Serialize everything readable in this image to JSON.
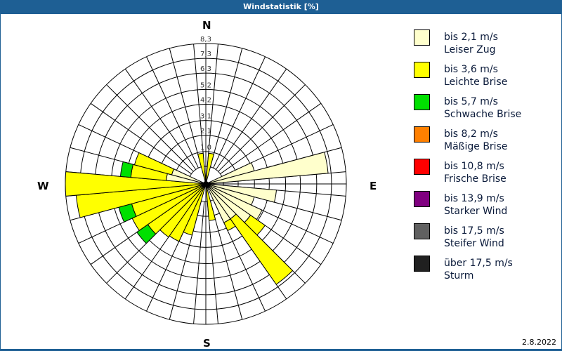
{
  "window": {
    "title": "Windstatistik [%]",
    "date": "2.8.2022"
  },
  "compass": {
    "n": "N",
    "e": "E",
    "s": "S",
    "w": "W"
  },
  "legend": [
    {
      "range": "bis 2,1 m/s",
      "name": "Leiser Zug",
      "color": "#ffffcc"
    },
    {
      "range": "bis 3,6 m/s",
      "name": "Leichte Brise",
      "color": "#ffff00"
    },
    {
      "range": "bis 5,7 m/s",
      "name": "Schwache Brise",
      "color": "#00e000"
    },
    {
      "range": "bis 8,2 m/s",
      "name": "Mäßige Brise",
      "color": "#ff8000"
    },
    {
      "range": "bis 10,8 m/s",
      "name": "Frische Brise",
      "color": "#ff0000"
    },
    {
      "range": "bis 13,9 m/s",
      "name": "Starker Wind",
      "color": "#800080"
    },
    {
      "range": "bis 17,5 m/s",
      "name": "Steifer Wind",
      "color": "#606060"
    },
    {
      "range": "über 17,5 m/s",
      "name": "Sturm",
      "color": "#202020"
    }
  ],
  "chart_data": {
    "type": "wind-rose",
    "title": "Windstatistik [%]",
    "unit": "%",
    "ring_labels": [
      "1,0",
      "2,1",
      "3,1",
      "4,2",
      "5,2",
      "6,3",
      "7,3",
      "8,3"
    ],
    "ring_values": [
      1.0,
      2.1,
      3.1,
      4.2,
      5.2,
      6.3,
      7.3,
      8.3
    ],
    "rmax": 8.3,
    "sector_width_deg": 10,
    "categories": [
      "bis 2,1 m/s",
      "bis 3,6 m/s",
      "bis 5,7 m/s",
      "bis 8,2 m/s",
      "bis 10,8 m/s",
      "bis 13,9 m/s",
      "bis 17,5 m/s",
      "über 17,5 m/s"
    ],
    "sectors": [
      {
        "dir": 0,
        "values": [
          0,
          0,
          0
        ]
      },
      {
        "dir": 10,
        "values": [
          0,
          0.9,
          0
        ]
      },
      {
        "dir": 20,
        "values": [
          0,
          0,
          0
        ]
      },
      {
        "dir": 30,
        "values": [
          0,
          0,
          0
        ]
      },
      {
        "dir": 40,
        "values": [
          0,
          0,
          0
        ]
      },
      {
        "dir": 50,
        "values": [
          0,
          0,
          0
        ]
      },
      {
        "dir": 60,
        "values": [
          0,
          0,
          0
        ]
      },
      {
        "dir": 70,
        "values": [
          2.2,
          0,
          0
        ]
      },
      {
        "dir": 80,
        "values": [
          7.1,
          0,
          0
        ]
      },
      {
        "dir": 90,
        "values": [
          0,
          0,
          0
        ]
      },
      {
        "dir": 100,
        "values": [
          3.6,
          0,
          0
        ]
      },
      {
        "dir": 110,
        "values": [
          2.2,
          0,
          0
        ]
      },
      {
        "dir": 120,
        "values": [
          3.0,
          0,
          0
        ]
      },
      {
        "dir": 130,
        "values": [
          2.5,
          1.2,
          0
        ]
      },
      {
        "dir": 140,
        "values": [
          1.7,
          5.4,
          0
        ]
      },
      {
        "dir": 150,
        "values": [
          1.7,
          0.6,
          0
        ]
      },
      {
        "dir": 160,
        "values": [
          0,
          0,
          0
        ]
      },
      {
        "dir": 170,
        "values": [
          0,
          1.3,
          0
        ]
      },
      {
        "dir": 180,
        "values": [
          0,
          0,
          0
        ]
      },
      {
        "dir": 190,
        "values": [
          0,
          0,
          0
        ]
      },
      {
        "dir": 200,
        "values": [
          0,
          2.4,
          0
        ]
      },
      {
        "dir": 210,
        "values": [
          0,
          3.1,
          0
        ]
      },
      {
        "dir": 220,
        "values": [
          0,
          3.2,
          0
        ]
      },
      {
        "dir": 230,
        "values": [
          0,
          3.6,
          0.9
        ]
      },
      {
        "dir": 240,
        "values": [
          0,
          4.3,
          0
        ]
      },
      {
        "dir": 250,
        "values": [
          0,
          4.0,
          0.9
        ]
      },
      {
        "dir": 260,
        "values": [
          0,
          7.6,
          0
        ]
      },
      {
        "dir": 270,
        "values": [
          0,
          8.3,
          0
        ]
      },
      {
        "dir": 280,
        "values": [
          1.5,
          2.4,
          0.7
        ]
      },
      {
        "dir": 290,
        "values": [
          1.2,
          2.6,
          0
        ]
      },
      {
        "dir": 300,
        "values": [
          0,
          0,
          0
        ]
      },
      {
        "dir": 310,
        "values": [
          0,
          0,
          0
        ]
      },
      {
        "dir": 320,
        "values": [
          0,
          0,
          0
        ]
      },
      {
        "dir": 330,
        "values": [
          0,
          0,
          0
        ]
      },
      {
        "dir": 340,
        "values": [
          0,
          0,
          0
        ]
      },
      {
        "dir": 350,
        "values": [
          0,
          0.9,
          0
        ]
      }
    ],
    "grid": true,
    "legend_position": "right"
  }
}
